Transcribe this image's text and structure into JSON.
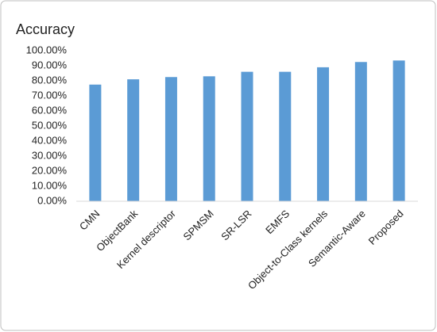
{
  "chart_data": {
    "type": "bar",
    "title": "Accuracy",
    "categories": [
      "CMN",
      "ObjectBank",
      "Kernel descriptor",
      "SPMSM",
      "SR-LSR",
      "EMFS",
      "Object-to-Class kernels",
      "Semantic-Aware",
      "Proposed"
    ],
    "values": [
      77.5,
      81,
      82.5,
      83,
      86,
      86,
      89,
      92.5,
      93.5
    ],
    "color": "#5b9bd5",
    "ylim": [
      0,
      100
    ],
    "yticks": [
      {
        "value": 0,
        "label": "0.00%"
      },
      {
        "value": 10,
        "label": "10.00%"
      },
      {
        "value": 20,
        "label": "20.00%"
      },
      {
        "value": 30,
        "label": "30.00%"
      },
      {
        "value": 40,
        "label": "40.00%"
      },
      {
        "value": 50,
        "label": "50.00%"
      },
      {
        "value": 60,
        "label": "60.00%"
      },
      {
        "value": 70,
        "label": "70.00%"
      },
      {
        "value": 80,
        "label": "80.00%"
      },
      {
        "value": 90,
        "label": "90.00%"
      },
      {
        "value": 100,
        "label": "100.00%"
      }
    ],
    "grid": false
  }
}
